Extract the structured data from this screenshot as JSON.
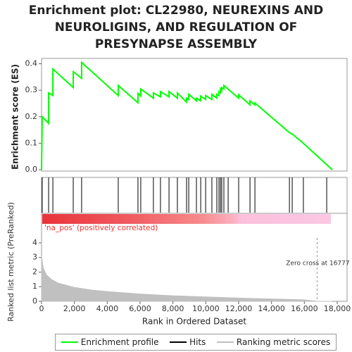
{
  "chart_data": [
    {
      "type": "line",
      "title": "Enrichment plot: CL22980, NEUREXINS AND NEUROLIGINS, AND REGULATION OF PRESYNAPSE ASSEMBLY",
      "ylabel": "Enrichment score (ES)",
      "xlim": [
        0,
        18600
      ],
      "ylim": [
        -0.005,
        0.42
      ],
      "yticks": [
        {
          "value": 0,
          "label": "0.0"
        },
        0.1,
        0.2,
        0.3,
        0.4
      ],
      "series": [
        {
          "name": "Enrichment profile",
          "color": "#00ff00",
          "x": [
            0,
            40,
            430,
            430,
            690,
            690,
            1930,
            1930,
            2440,
            2440,
            4670,
            4670,
            5870,
            5870,
            6040,
            6040,
            6810,
            6810,
            7240,
            7240,
            7760,
            7760,
            8270,
            8270,
            8830,
            8830,
            8960,
            8960,
            9430,
            9430,
            9690,
            9690,
            9990,
            9990,
            10370,
            10370,
            10670,
            10670,
            10800,
            10800,
            10890,
            10890,
            10970,
            10970,
            11100,
            11100,
            12000,
            12000,
            12690,
            12690,
            12990,
            12990,
            15090,
            15260,
            15940,
            17700
          ],
          "values": [
            0,
            0.2,
            0.175,
            0.29,
            0.28,
            0.38,
            0.31,
            0.37,
            0.345,
            0.405,
            0.28,
            0.318,
            0.253,
            0.288,
            0.278,
            0.305,
            0.27,
            0.29,
            0.275,
            0.295,
            0.275,
            0.295,
            0.27,
            0.29,
            0.255,
            0.27,
            0.265,
            0.285,
            0.26,
            0.27,
            0.26,
            0.278,
            0.265,
            0.28,
            0.265,
            0.285,
            0.27,
            0.285,
            0.28,
            0.295,
            0.29,
            0.305,
            0.298,
            0.31,
            0.305,
            0.318,
            0.27,
            0.283,
            0.245,
            0.26,
            0.245,
            0.252,
            0.14,
            0.135,
            0.1,
            0
          ]
        }
      ]
    },
    {
      "type": "rug",
      "xlim": [
        0,
        18600
      ],
      "series": [
        {
          "name": "Hits",
          "color": "#000000",
          "x": [
            40,
            430,
            690,
            1930,
            2440,
            4670,
            5870,
            6040,
            6810,
            7240,
            7760,
            8270,
            8830,
            8960,
            9430,
            9690,
            9990,
            10370,
            10670,
            10800,
            10890,
            10970,
            11100,
            11360,
            12000,
            12690,
            12990,
            15090,
            15260,
            15940,
            17360
          ]
        }
      ]
    },
    {
      "type": "area",
      "ylabel": "Ranked list metric (PreRanked)",
      "xlabel": "Rank in Ordered Dataset",
      "annotation": "'na_pos' (positively correlated)",
      "zero_cross": {
        "value": 16777,
        "label": "Zero cross at 16777"
      },
      "xlim": [
        0,
        18600
      ],
      "ylim": [
        0,
        5.3
      ],
      "xticks": [
        0,
        {
          "value": 2000,
          "label": "2,000"
        },
        {
          "value": 4000,
          "label": "4,000"
        },
        {
          "value": 6000,
          "label": "6,000"
        },
        {
          "value": 8000,
          "label": "8,000"
        },
        {
          "value": 10000,
          "label": "10,000"
        },
        {
          "value": 12000,
          "label": "12,000"
        },
        {
          "value": 14000,
          "label": "14,000"
        },
        {
          "value": 16000,
          "label": "16,000"
        },
        {
          "value": 18000,
          "label": "18,000"
        }
      ],
      "yticks": [
        0,
        1,
        2,
        3,
        4
      ],
      "series": [
        {
          "name": "Ranking metric scores",
          "color": "#c0c0c0",
          "x": [
            0,
            100,
            300,
            600,
            1000,
            2000,
            3000,
            4000,
            6000,
            8000,
            10000,
            12000,
            14000,
            16000,
            16777,
            17700
          ],
          "values": [
            3.1,
            2.3,
            1.8,
            1.5,
            1.25,
            0.95,
            0.78,
            0.67,
            0.5,
            0.38,
            0.3,
            0.22,
            0.16,
            0.1,
            0,
            0
          ]
        }
      ]
    }
  ]
}
